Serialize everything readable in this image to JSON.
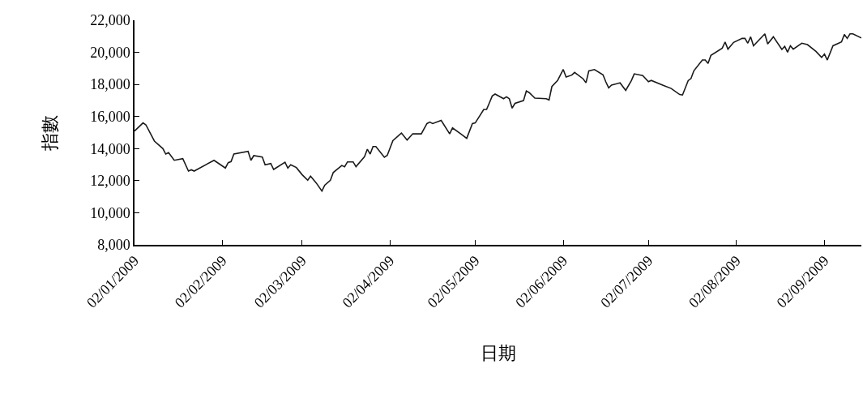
{
  "chart_data": {
    "type": "line",
    "xlabel": "日期",
    "ylabel": "指數",
    "x": [
      "2009-01-02",
      "2009-01-05",
      "2009-01-06",
      "2009-01-09",
      "2009-01-12",
      "2009-01-13",
      "2009-01-14",
      "2009-01-16",
      "2009-01-19",
      "2009-01-21",
      "2009-01-22",
      "2009-01-23",
      "2009-01-30",
      "2009-02-03",
      "2009-02-04",
      "2009-02-05",
      "2009-02-06",
      "2009-02-11",
      "2009-02-12",
      "2009-02-13",
      "2009-02-16",
      "2009-02-17",
      "2009-02-19",
      "2009-02-20",
      "2009-02-24",
      "2009-02-25",
      "2009-02-26",
      "2009-02-28",
      "2009-03-02",
      "2009-03-04",
      "2009-03-05",
      "2009-03-07",
      "2009-03-09",
      "2009-03-10",
      "2009-03-12",
      "2009-03-13",
      "2009-03-16",
      "2009-03-17",
      "2009-03-18",
      "2009-03-20",
      "2009-03-21",
      "2009-03-24",
      "2009-03-25",
      "2009-03-26",
      "2009-03-27",
      "2009-03-28",
      "2009-03-31",
      "2009-04-01",
      "2009-04-03",
      "2009-04-06",
      "2009-04-08",
      "2009-04-10",
      "2009-04-13",
      "2009-04-15",
      "2009-04-16",
      "2009-04-17",
      "2009-04-20",
      "2009-04-23",
      "2009-04-24",
      "2009-04-27",
      "2009-04-29",
      "2009-05-01",
      "2009-05-02",
      "2009-05-05",
      "2009-05-06",
      "2009-05-07",
      "2009-05-08",
      "2009-05-09",
      "2009-05-12",
      "2009-05-13",
      "2009-05-14",
      "2009-05-15",
      "2009-05-16",
      "2009-05-19",
      "2009-05-20",
      "2009-05-21",
      "2009-05-23",
      "2009-05-27",
      "2009-05-28",
      "2009-05-29",
      "2009-05-31",
      "2009-06-02",
      "2009-06-03",
      "2009-06-05",
      "2009-06-06",
      "2009-06-09",
      "2009-06-10",
      "2009-06-11",
      "2009-06-13",
      "2009-06-16",
      "2009-06-17",
      "2009-06-18",
      "2009-06-19",
      "2009-06-22",
      "2009-06-24",
      "2009-06-26",
      "2009-06-27",
      "2009-06-30",
      "2009-07-02",
      "2009-07-03",
      "2009-07-07",
      "2009-07-10",
      "2009-07-13",
      "2009-07-14",
      "2009-07-16",
      "2009-07-17",
      "2009-07-18",
      "2009-07-21",
      "2009-07-22",
      "2009-07-23",
      "2009-07-24",
      "2009-07-28",
      "2009-07-29",
      "2009-07-30",
      "2009-08-01",
      "2009-08-04",
      "2009-08-05",
      "2009-08-06",
      "2009-08-07",
      "2009-08-08",
      "2009-08-12",
      "2009-08-13",
      "2009-08-15",
      "2009-08-18",
      "2009-08-19",
      "2009-08-20",
      "2009-08-21",
      "2009-08-22",
      "2009-08-25",
      "2009-08-27",
      "2009-08-30",
      "2009-09-01",
      "2009-09-02",
      "2009-09-03",
      "2009-09-05",
      "2009-09-08",
      "2009-09-09",
      "2009-09-10",
      "2009-09-11",
      "2009-09-12",
      "2009-09-15"
    ],
    "series": [
      {
        "color": "#1a1a1a",
        "values": [
          15090,
          15600,
          15480,
          14470,
          14000,
          13660,
          13750,
          13270,
          13370,
          12600,
          12680,
          12600,
          13270,
          12790,
          13120,
          13190,
          13660,
          13830,
          13270,
          13560,
          13470,
          12990,
          13070,
          12700,
          13150,
          12790,
          12990,
          12820,
          12380,
          12030,
          12280,
          11860,
          11350,
          11720,
          12030,
          12510,
          12950,
          12870,
          13170,
          13170,
          12870,
          13490,
          13960,
          13660,
          14130,
          14130,
          13460,
          13570,
          14500,
          14970,
          14530,
          14920,
          14920,
          15560,
          15650,
          15560,
          15760,
          14920,
          15290,
          14900,
          14640,
          15560,
          15600,
          16440,
          16440,
          16860,
          17280,
          17400,
          17110,
          17230,
          17110,
          16520,
          16820,
          16990,
          17590,
          17490,
          17150,
          17110,
          17030,
          17870,
          18240,
          18930,
          18460,
          18580,
          18750,
          18350,
          18100,
          18840,
          18930,
          18600,
          18160,
          17790,
          17960,
          18100,
          17630,
          18240,
          18660,
          18550,
          18170,
          18250,
          17960,
          17750,
          17370,
          17340,
          18240,
          18370,
          18850,
          19520,
          19520,
          19310,
          19810,
          20260,
          20650,
          20200,
          20620,
          20870,
          20870,
          20570,
          20970,
          20410,
          21150,
          20520,
          20970,
          20180,
          20370,
          20010,
          20410,
          20200,
          20570,
          20480,
          20060,
          19690,
          19890,
          19520,
          20410,
          20650,
          21120,
          20870,
          21150,
          21150,
          20900
        ]
      }
    ],
    "xlim": [
      "2009-01-02",
      "2009-09-15"
    ],
    "xticks": [
      {
        "value": "2009-01-02",
        "label": "02/01/2009"
      },
      {
        "value": "2009-02-02",
        "label": "02/02/2009"
      },
      {
        "value": "2009-03-02",
        "label": "02/03/2009"
      },
      {
        "value": "2009-04-02",
        "label": "02/04/2009"
      },
      {
        "value": "2009-05-02",
        "label": "02/05/2009"
      },
      {
        "value": "2009-06-02",
        "label": "02/06/2009"
      },
      {
        "value": "2009-07-02",
        "label": "02/07/2009"
      },
      {
        "value": "2009-08-02",
        "label": "02/08/2009"
      },
      {
        "value": "2009-09-02",
        "label": "02/09/2009"
      }
    ],
    "ylim": [
      8000,
      22000
    ],
    "yticks": [
      {
        "value": 8000,
        "label": "8,000"
      },
      {
        "value": 10000,
        "label": "10,000"
      },
      {
        "value": 12000,
        "label": "12,000"
      },
      {
        "value": 14000,
        "label": "14,000"
      },
      {
        "value": 16000,
        "label": "16,000"
      },
      {
        "value": 18000,
        "label": "18,000"
      },
      {
        "value": 20000,
        "label": "20,000"
      },
      {
        "value": 22000,
        "label": "22,000"
      }
    ],
    "marker": "none",
    "line_style": "solid"
  }
}
